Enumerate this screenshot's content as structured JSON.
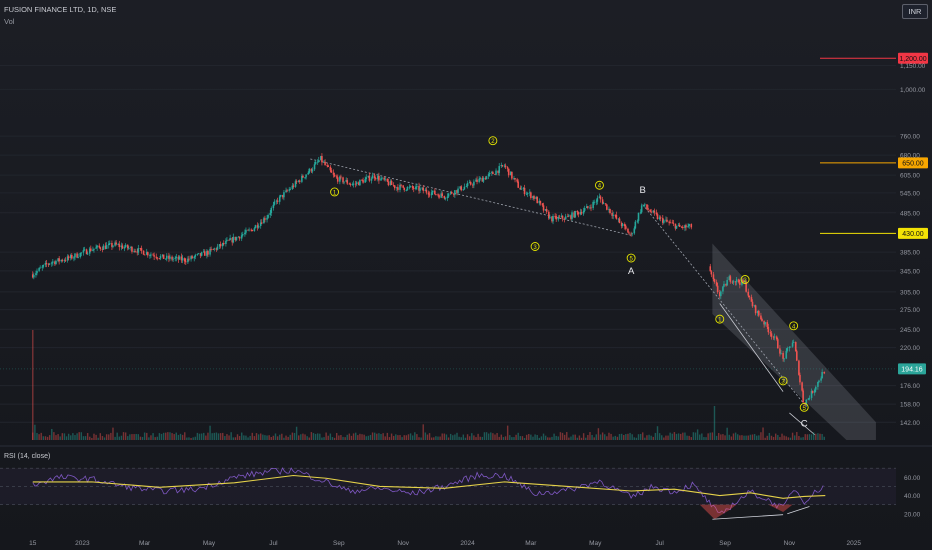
{
  "header": {
    "symbol_line": "FUSION FINANCE LTD, 1D, NSE",
    "volume_label": "Vol",
    "currency": "INR"
  },
  "colors": {
    "up": "#26a69a",
    "down": "#ef5350",
    "wave_label": "#e6e600",
    "channel": "#9ea3ad",
    "rsi_line": "#7e57c2",
    "rsi_ma": "#e6d34a",
    "level_red": "#f23645",
    "level_orange": "#f7a600",
    "level_yellow": "#f2e205",
    "last_price": "#2ba59a"
  },
  "chart_data": [
    {
      "type": "line",
      "title": "FUSION FINANCE LTD, 1D, NSE",
      "y_scale": "log",
      "ylim": [
        128,
        1450
      ],
      "x_ticks": [
        "15",
        "2023",
        "Mar",
        "May",
        "Jul",
        "Sep",
        "Nov",
        "2024",
        "Mar",
        "May",
        "Jul",
        "Sep",
        "Nov",
        "2025"
      ],
      "y_ticks": [
        142,
        158,
        176,
        220,
        245,
        275,
        305,
        345,
        385,
        485,
        545,
        605,
        680,
        760,
        1000,
        1150
      ],
      "series": [
        {
          "x": [
            "2022-11-15",
            "2022-12-01",
            "2022-12-20",
            "2023-01-10",
            "2023-02-01",
            "2023-02-25",
            "2023-03-20",
            "2023-04-10",
            "2023-05-01",
            "2023-05-20",
            "2023-06-10",
            "2023-06-25",
            "2023-07-05",
            "2023-07-20",
            "2023-08-05",
            "2023-08-15",
            "2023-08-28",
            "2023-09-15",
            "2023-10-05",
            "2023-10-25",
            "2023-11-15",
            "2023-12-10",
            "2024-01-05",
            "2024-01-25",
            "2024-02-05",
            "2024-02-20",
            "2024-03-05",
            "2024-03-20",
            "2024-04-05",
            "2024-04-25",
            "2024-05-05",
            "2024-05-20",
            "2024-06-04",
            "2024-06-15",
            "2024-07-01",
            "2024-07-20",
            "2024-08-05",
            "2024-08-20",
            "2024-08-27",
            "2024-09-05",
            "2024-09-20",
            "2024-09-25",
            "2024-10-05",
            "2024-10-20",
            "2024-10-26",
            "2024-11-05",
            "2024-11-15",
            "2024-11-22",
            "2024-12-05"
          ],
          "values": [
            338,
            362,
            372,
            392,
            402,
            388,
            372,
            368,
            385,
            410,
            438,
            475,
            522,
            568,
            622,
            665,
            597,
            572,
            602,
            565,
            558,
            535,
            575,
            610,
            640,
            560,
            530,
            468,
            472,
            500,
            530,
            473,
            425,
            509,
            468,
            445,
            448,
            330,
            300,
            330,
            320,
            289,
            262,
            228,
            205,
            230,
            158,
            168,
            194
          ]
        }
      ],
      "levels": [
        {
          "label": "1,200.00",
          "value": 1200,
          "color": "#f23645"
        },
        {
          "label": "650.00",
          "value": 650,
          "color": "#f7a600"
        },
        {
          "label": "430.00",
          "value": 430,
          "color": "#f2e205"
        }
      ],
      "last_price": {
        "label": "194.16",
        "value": 194.16
      },
      "wave_labels": [
        {
          "text": "1",
          "circled": true,
          "x": "2023-08-28",
          "y": 548
        },
        {
          "text": "2",
          "circled": true,
          "x": "2024-01-25",
          "y": 740
        },
        {
          "text": "3",
          "circled": true,
          "x": "2024-03-05",
          "y": 398
        },
        {
          "text": "4",
          "circled": true,
          "x": "2024-05-05",
          "y": 570
        },
        {
          "text": "5",
          "circled": true,
          "x": "2024-06-04",
          "y": 372
        },
        {
          "text": "A",
          "circled": false,
          "x": "2024-06-04",
          "y": 345
        },
        {
          "text": "B",
          "circled": false,
          "x": "2024-06-15",
          "y": 555
        },
        {
          "text": "1",
          "circled": true,
          "x": "2024-08-27",
          "y": 260
        },
        {
          "text": "2",
          "circled": true,
          "x": "2024-09-20",
          "y": 328
        },
        {
          "text": "3",
          "circled": true,
          "x": "2024-10-26",
          "y": 181
        },
        {
          "text": "4",
          "circled": true,
          "x": "2024-11-05",
          "y": 250
        },
        {
          "text": "5",
          "circled": true,
          "x": "2024-11-15",
          "y": 155
        },
        {
          "text": "C",
          "circled": false,
          "x": "2024-11-15",
          "y": 141
        }
      ]
    },
    {
      "type": "line",
      "title": "RSI (14, close)",
      "ylim": [
        0,
        90
      ],
      "y_ticks": [
        20,
        40,
        60
      ],
      "bands": [
        30,
        50,
        70
      ],
      "series": [
        {
          "name": "RSI (14, close)",
          "x": [
            "2022-11-15",
            "2022-12-10",
            "2023-01-10",
            "2023-02-10",
            "2023-03-15",
            "2023-04-20",
            "2023-05-25",
            "2023-06-25",
            "2023-07-20",
            "2023-08-20",
            "2023-09-10",
            "2023-10-10",
            "2023-11-10",
            "2023-12-10",
            "2024-01-10",
            "2024-02-05",
            "2024-03-05",
            "2024-04-05",
            "2024-05-05",
            "2024-06-04",
            "2024-06-25",
            "2024-07-15",
            "2024-08-01",
            "2024-08-15",
            "2024-08-27",
            "2024-09-10",
            "2024-09-25",
            "2024-10-10",
            "2024-10-26",
            "2024-11-05",
            "2024-11-15",
            "2024-12-05"
          ],
          "values": [
            52,
            60,
            58,
            50,
            45,
            47,
            60,
            66,
            68,
            55,
            45,
            48,
            42,
            50,
            62,
            62,
            42,
            46,
            56,
            38,
            50,
            44,
            52,
            35,
            18,
            32,
            44,
            36,
            26,
            48,
            34,
            52
          ]
        },
        {
          "x": [
            "2022-11-15",
            "2023-01-10",
            "2023-03-15",
            "2023-05-25",
            "2023-07-20",
            "2023-08-20",
            "2023-10-10",
            "2023-12-10",
            "2024-02-05",
            "2024-04-05",
            "2024-06-04",
            "2024-07-15",
            "2024-08-27",
            "2024-09-25",
            "2024-10-26",
            "2024-11-15",
            "2024-12-05"
          ],
          "values": [
            55,
            55,
            49,
            54,
            62,
            59,
            50,
            48,
            55,
            50,
            45,
            47,
            40,
            43,
            37,
            39,
            40
          ]
        }
      ]
    }
  ]
}
